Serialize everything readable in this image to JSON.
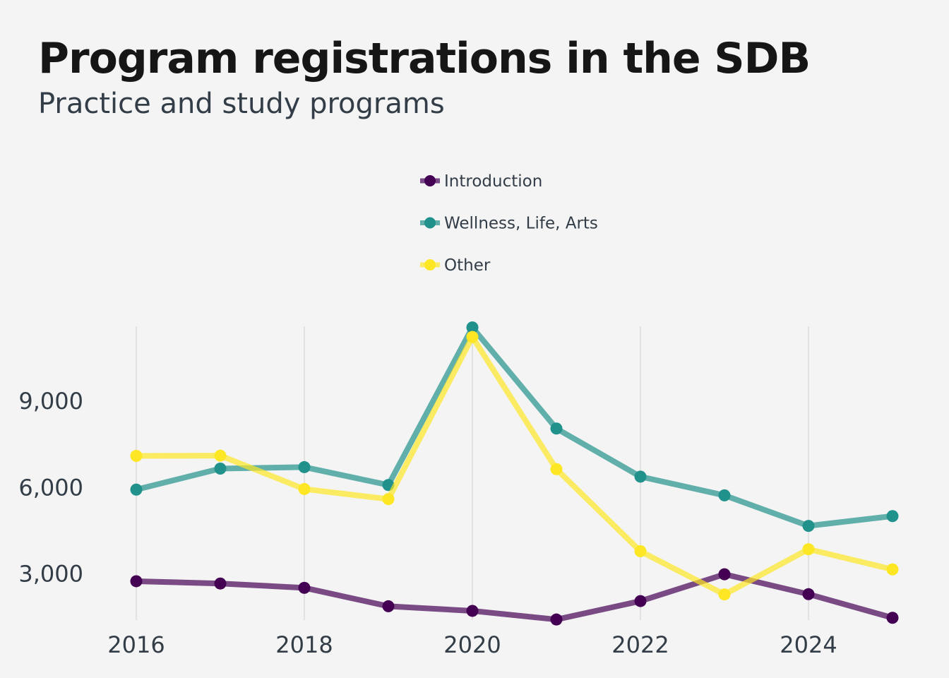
{
  "header": {
    "title": "Program registrations in the SDB",
    "subtitle": "Practice and study programs"
  },
  "chart_data": {
    "type": "line",
    "title": "Program registrations in the SDB",
    "subtitle": "Practice and study programs",
    "xlabel": "",
    "ylabel": "",
    "x": [
      2016,
      2017,
      2018,
      2019,
      2020,
      2021,
      2022,
      2023,
      2024,
      2025
    ],
    "x_ticks": [
      2016,
      2018,
      2020,
      2022,
      2024
    ],
    "y_ticks": [
      3000,
      6000,
      9000
    ],
    "xlim": [
      2016,
      2025
    ],
    "ylim": [
      1400,
      11600
    ],
    "grid": "vertical",
    "legend_position": "top-center",
    "series": [
      {
        "name": "Introduction",
        "color": "#440154",
        "values": [
          2750,
          2670,
          2520,
          1880,
          1720,
          1420,
          2060,
          2990,
          2300,
          1480
        ]
      },
      {
        "name": "Wellness, Life, Arts",
        "color": "#21918c",
        "values": [
          5930,
          6660,
          6710,
          6090,
          11560,
          8050,
          6380,
          5730,
          4670,
          5010
        ]
      },
      {
        "name": "Other",
        "color": "#fde725",
        "values": [
          7100,
          7110,
          5950,
          5600,
          11230,
          6640,
          3790,
          2290,
          3860,
          3160
        ]
      }
    ]
  }
}
